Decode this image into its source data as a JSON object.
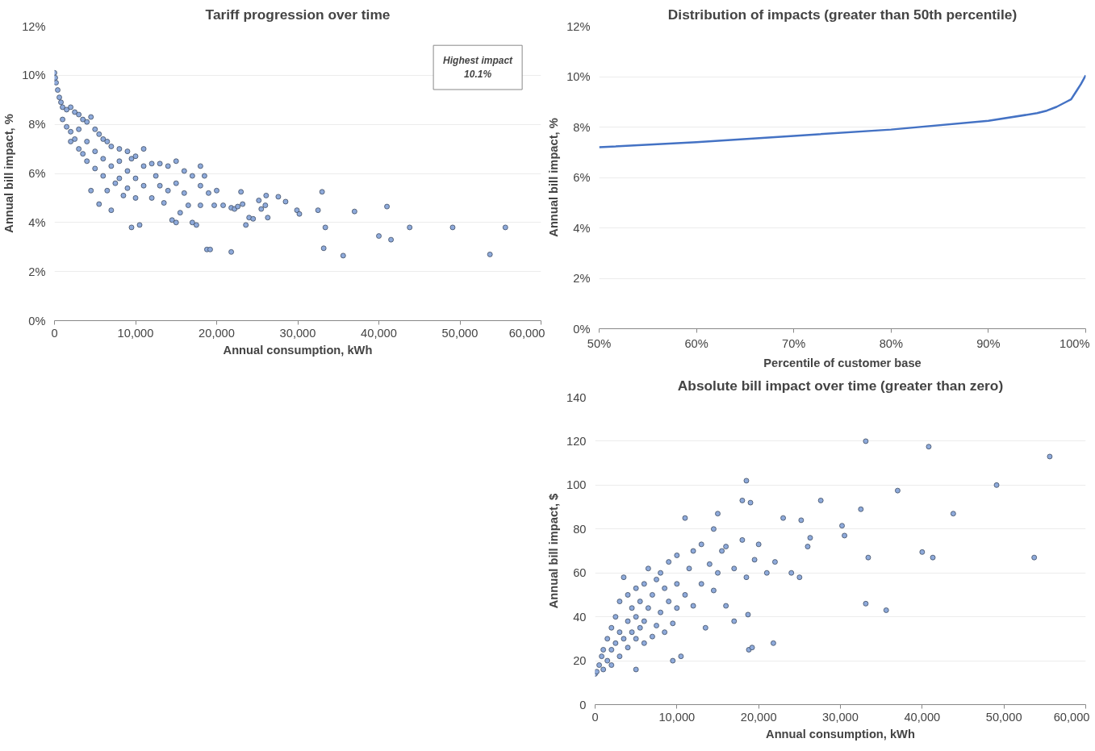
{
  "chart_data": [
    {
      "type": "scatter",
      "title": "Tariff progression over time",
      "xlabel": "Annual consumption, kWh",
      "ylabel": "Annual bill impact, %",
      "grid": "y",
      "marker": "circle",
      "annotations": [
        "Highest impact\n10.1%"
      ],
      "xlim": [
        0,
        60000
      ],
      "xticks": [
        0,
        {
          "value": 10000,
          "label": "10,000"
        },
        {
          "value": 20000,
          "label": "20,000"
        },
        {
          "value": 30000,
          "label": "30,000"
        },
        {
          "value": 40000,
          "label": "40,000"
        },
        {
          "value": 50000,
          "label": "50,000"
        },
        {
          "value": 60000,
          "label": "60,000"
        }
      ],
      "ylim": [
        0,
        12
      ],
      "yticks": [
        {
          "value": 0,
          "label": "0%"
        },
        {
          "value": 2,
          "label": "2%"
        },
        {
          "value": 4,
          "label": "4%"
        },
        {
          "value": 6,
          "label": "6%"
        },
        {
          "value": 8,
          "label": "8%"
        },
        {
          "value": 10,
          "label": "10%"
        },
        {
          "value": 12,
          "label": "12%"
        }
      ],
      "series": [
        {
          "color": "#8eaadb",
          "x": [
            0,
            100,
            200,
            400,
            600,
            800,
            1000,
            1000,
            1500,
            1500,
            2000,
            2000,
            2000,
            2500,
            2500,
            3000,
            3000,
            3000,
            3500,
            3500,
            4000,
            4000,
            4000,
            4500,
            4500,
            5000,
            5000,
            5000,
            5500,
            5500,
            6000,
            6000,
            6000,
            6500,
            6500,
            7000,
            7000,
            7000,
            7500,
            8000,
            8000,
            8000,
            8500,
            9000,
            9000,
            9000,
            9500,
            9500,
            10000,
            10000,
            10000,
            10500,
            11000,
            11000,
            11000,
            12000,
            12000,
            12500,
            13000,
            13000,
            13500,
            14000,
            14000,
            14500,
            15000,
            15000,
            15000,
            15500,
            16000,
            16000,
            16500,
            17000,
            17000,
            17500,
            18000,
            18000,
            18000,
            18500,
            19000,
            18800,
            19200,
            19700,
            20000,
            20800,
            21800,
            21800,
            22200,
            22600,
            23000,
            23200,
            23600,
            24000,
            24500,
            25200,
            25500,
            26000,
            26100,
            26300,
            27600,
            28500,
            29900,
            30200,
            32500,
            33000,
            33200,
            33400,
            35600,
            37000,
            40000,
            41000,
            41500,
            43800,
            49100,
            53700,
            55600
          ],
          "values": [
            10.1,
            9.9,
            9.7,
            9.4,
            9.1,
            8.9,
            8.7,
            8.2,
            8.6,
            7.9,
            8.7,
            7.7,
            7.3,
            8.5,
            7.4,
            8.4,
            7.0,
            7.8,
            8.2,
            6.8,
            8.1,
            7.3,
            6.5,
            8.3,
            5.3,
            7.8,
            6.9,
            6.2,
            4.75,
            7.6,
            7.4,
            6.6,
            5.9,
            7.3,
            5.3,
            4.5,
            7.1,
            6.3,
            5.6,
            7.0,
            6.5,
            5.8,
            5.1,
            6.9,
            6.1,
            5.4,
            3.8,
            6.6,
            6.7,
            5.8,
            5.0,
            3.9,
            7.0,
            6.3,
            5.5,
            6.4,
            5.0,
            5.9,
            6.4,
            5.5,
            4.8,
            6.3,
            5.3,
            4.1,
            6.5,
            5.6,
            4.0,
            4.4,
            6.1,
            5.2,
            4.7,
            5.9,
            4.0,
            3.9,
            6.3,
            5.5,
            4.7,
            5.9,
            5.2,
            2.9,
            2.9,
            4.7,
            5.3,
            4.7,
            2.8,
            4.6,
            4.55,
            4.65,
            5.25,
            4.75,
            3.9,
            4.2,
            4.15,
            4.9,
            4.55,
            4.7,
            5.1,
            4.2,
            5.05,
            4.85,
            4.5,
            4.35,
            4.5,
            5.25,
            2.95,
            3.8,
            2.65,
            4.45,
            3.45,
            4.65,
            3.3,
            3.8,
            3.8,
            2.7,
            3.8
          ]
        }
      ]
    },
    {
      "type": "line",
      "title": "Distribution of impacts (greater than 50th percentile)",
      "xlabel": "Percentile of customer base",
      "ylabel": "Annual bill impact, %",
      "grid": "y",
      "marker": "none",
      "line_style": "solid",
      "xlim": [
        50,
        100
      ],
      "xticks": [
        {
          "value": 50,
          "label": "50%"
        },
        {
          "value": 60,
          "label": "60%"
        },
        {
          "value": 70,
          "label": "70%"
        },
        {
          "value": 80,
          "label": "80%"
        },
        {
          "value": 90,
          "label": "90%"
        },
        {
          "value": 100,
          "label": "100%"
        }
      ],
      "ylim": [
        0,
        12
      ],
      "yticks": [
        {
          "value": 0,
          "label": "0%"
        },
        {
          "value": 2,
          "label": "2%"
        },
        {
          "value": 4,
          "label": "4%"
        },
        {
          "value": 6,
          "label": "6%"
        },
        {
          "value": 8,
          "label": "8%"
        },
        {
          "value": 10,
          "label": "10%"
        },
        {
          "value": 12,
          "label": "12%"
        }
      ],
      "series": [
        {
          "color": "#4472c4",
          "x": [
            50,
            60,
            70,
            80,
            90,
            95,
            96,
            97,
            98,
            98.5,
            99,
            99.5,
            100
          ],
          "values": [
            7.2,
            7.4,
            7.65,
            7.9,
            8.25,
            8.55,
            8.65,
            8.8,
            9.0,
            9.1,
            9.4,
            9.7,
            10.05
          ]
        }
      ]
    },
    {
      "type": "scatter",
      "title": "Absolute bill impact over time (greater than zero)",
      "xlabel": "Annual consumption, kWh",
      "ylabel": "Annual bill impact, $",
      "grid": "y",
      "marker": "circle",
      "xlim": [
        0,
        60000
      ],
      "xticks": [
        0,
        {
          "value": 10000,
          "label": "10,000"
        },
        {
          "value": 20000,
          "label": "20,000"
        },
        {
          "value": 30000,
          "label": "30,000"
        },
        {
          "value": 40000,
          "label": "40,000"
        },
        {
          "value": 50000,
          "label": "50,000"
        },
        {
          "value": 60000,
          "label": "60,000"
        }
      ],
      "ylim": [
        0,
        140
      ],
      "yticks": [
        0,
        20,
        40,
        60,
        80,
        100,
        120,
        140
      ],
      "series": [
        {
          "color": "#8eaadb",
          "x": [
            0,
            200,
            500,
            800,
            1000,
            1000,
            1500,
            1500,
            2000,
            2000,
            2000,
            2500,
            2500,
            3000,
            3000,
            3000,
            3500,
            3500,
            4000,
            4000,
            4000,
            4500,
            4500,
            5000,
            5000,
            5000,
            5000,
            5500,
            5500,
            6000,
            6000,
            6000,
            6500,
            6500,
            7000,
            7000,
            7500,
            7500,
            8000,
            8000,
            8500,
            8500,
            9000,
            9000,
            9500,
            9500,
            10000,
            10000,
            10000,
            10500,
            11000,
            11000,
            11500,
            12000,
            12000,
            13000,
            13000,
            13500,
            14000,
            14500,
            14500,
            15000,
            15000,
            15500,
            16000,
            16000,
            17000,
            17000,
            18000,
            18000,
            18500,
            18700,
            19000,
            19500,
            20000,
            21000,
            22000,
            23000,
            24000,
            25000,
            18500,
            18800,
            19200,
            21800,
            25200,
            26000,
            26300,
            27600,
            30200,
            30500,
            32500,
            33100,
            33100,
            33400,
            35600,
            37000,
            40000,
            40800,
            41300,
            43800,
            49100,
            53700,
            55600
          ],
          "values": [
            14,
            15,
            18,
            22,
            16,
            25,
            20,
            30,
            18,
            35,
            25,
            28,
            40,
            22,
            33,
            47,
            30,
            58,
            26,
            38,
            50,
            33,
            44,
            16,
            30,
            40,
            53,
            35,
            47,
            28,
            38,
            55,
            62,
            44,
            31,
            50,
            36,
            57,
            42,
            60,
            33,
            53,
            47,
            65,
            37,
            20,
            55,
            68,
            44,
            22,
            50,
            85,
            62,
            45,
            70,
            55,
            73,
            35,
            64,
            80,
            52,
            60,
            87,
            70,
            45,
            72,
            62,
            38,
            93,
            75,
            58,
            41,
            92,
            66,
            73,
            60,
            65,
            85,
            60,
            58,
            102,
            25,
            26,
            28,
            84,
            72,
            76,
            93,
            81.5,
            77,
            89,
            120,
            46,
            67,
            43,
            97.5,
            69.5,
            117.5,
            67,
            87,
            100,
            67,
            113
          ]
        }
      ]
    }
  ]
}
